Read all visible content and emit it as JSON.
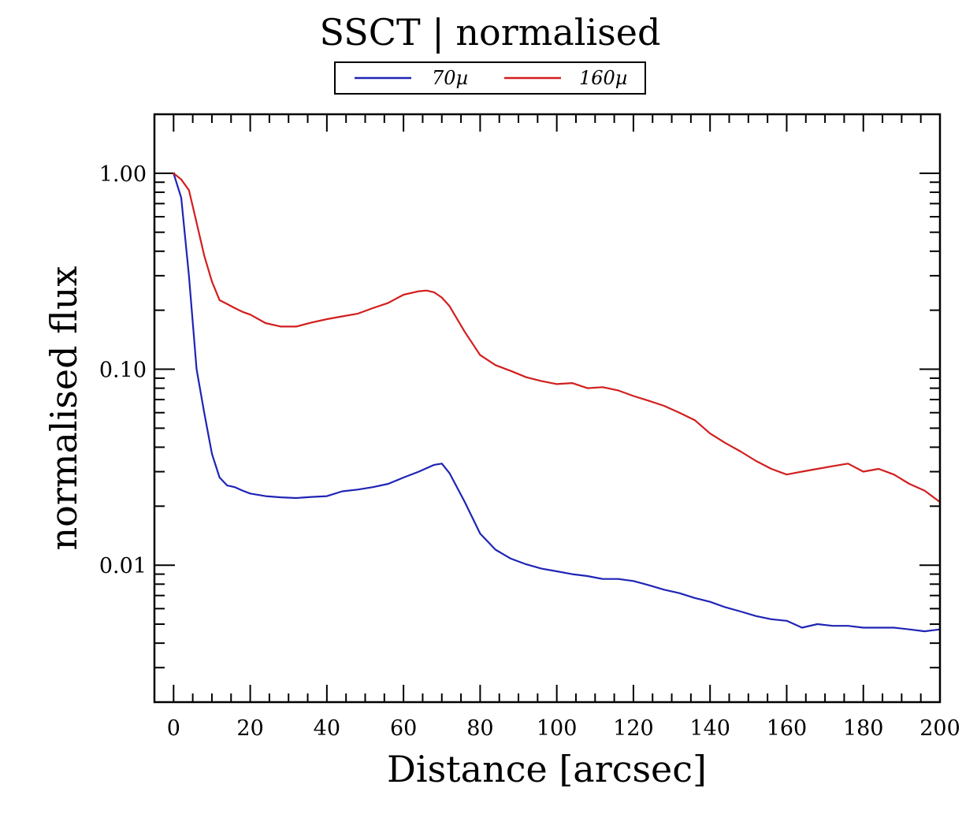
{
  "chart_data": {
    "type": "line",
    "title": "SSCT | normalised",
    "xlabel": "Distance [arcsec]",
    "ylabel": "normalised flux",
    "xlim": [
      -5,
      200
    ],
    "ylim": [
      0.002,
      2.0
    ],
    "yscale": "log",
    "legend_position": "top-center",
    "x_ticks": [
      0,
      20,
      40,
      60,
      80,
      100,
      120,
      140,
      160,
      180,
      200
    ],
    "x_tick_labels": [
      "0",
      "20",
      "40",
      "60",
      "80",
      "100",
      "120",
      "140",
      "160",
      "180",
      "200"
    ],
    "y_ticks": [
      1.0,
      0.1,
      0.01
    ],
    "y_tick_labels": [
      "1.00",
      "0.10",
      "0.01"
    ],
    "series": [
      {
        "name": "70µ",
        "color": "#1f24b5",
        "x": [
          0,
          2,
          4,
          6,
          8,
          10,
          12,
          14,
          16,
          18,
          20,
          24,
          28,
          32,
          36,
          40,
          44,
          48,
          52,
          56,
          60,
          64,
          68,
          70,
          72,
          76,
          80,
          84,
          88,
          92,
          96,
          100,
          104,
          108,
          112,
          116,
          120,
          124,
          128,
          132,
          136,
          140,
          144,
          148,
          152,
          156,
          160,
          164,
          168,
          172,
          176,
          180,
          184,
          188,
          192,
          196,
          200
        ],
        "y": [
          1.0,
          0.75,
          0.3,
          0.1,
          0.06,
          0.037,
          0.028,
          0.0255,
          0.025,
          0.024,
          0.0232,
          0.0225,
          0.0222,
          0.022,
          0.0223,
          0.0225,
          0.0238,
          0.0243,
          0.025,
          0.026,
          0.028,
          0.03,
          0.0325,
          0.033,
          0.0295,
          0.021,
          0.0145,
          0.012,
          0.0108,
          0.0101,
          0.0096,
          0.0093,
          0.009,
          0.0088,
          0.0085,
          0.0085,
          0.0083,
          0.0079,
          0.0075,
          0.0072,
          0.0068,
          0.0065,
          0.0061,
          0.0058,
          0.0055,
          0.0053,
          0.0052,
          0.0048,
          0.005,
          0.0049,
          0.0049,
          0.0048,
          0.0048,
          0.0048,
          0.0047,
          0.0046,
          0.0047
        ]
      },
      {
        "name": "160µ",
        "color": "#d21e1e",
        "x": [
          0,
          2,
          4,
          6,
          8,
          10,
          12,
          14,
          16,
          18,
          20,
          24,
          28,
          32,
          36,
          40,
          44,
          48,
          52,
          56,
          60,
          64,
          66,
          68,
          70,
          72,
          76,
          80,
          84,
          88,
          92,
          96,
          100,
          104,
          108,
          112,
          116,
          120,
          124,
          128,
          132,
          136,
          140,
          144,
          148,
          152,
          156,
          160,
          164,
          168,
          172,
          176,
          180,
          184,
          188,
          192,
          196,
          200
        ],
        "y": [
          1.0,
          0.93,
          0.82,
          0.56,
          0.38,
          0.28,
          0.225,
          0.215,
          0.205,
          0.196,
          0.19,
          0.172,
          0.165,
          0.165,
          0.173,
          0.18,
          0.186,
          0.192,
          0.205,
          0.218,
          0.24,
          0.25,
          0.252,
          0.247,
          0.232,
          0.21,
          0.155,
          0.118,
          0.105,
          0.098,
          0.091,
          0.087,
          0.084,
          0.085,
          0.08,
          0.081,
          0.078,
          0.073,
          0.069,
          0.065,
          0.06,
          0.055,
          0.047,
          0.042,
          0.038,
          0.034,
          0.031,
          0.029,
          0.03,
          0.031,
          0.032,
          0.033,
          0.03,
          0.031,
          0.029,
          0.026,
          0.024,
          0.021
        ]
      }
    ]
  }
}
